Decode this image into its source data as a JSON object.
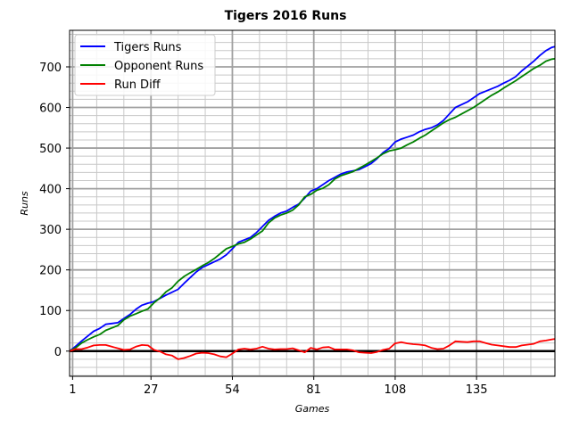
{
  "chart_data": {
    "type": "line",
    "title": "Tigers 2016 Runs",
    "xlabel": "Games",
    "ylabel": "Runs",
    "xlim": [
      0,
      161
    ],
    "ylim": [
      -62,
      790
    ],
    "xticks": [
      1,
      27,
      54,
      81,
      108,
      135
    ],
    "yticks": [
      0,
      100,
      200,
      300,
      400,
      500,
      600,
      700
    ],
    "grid": "major and minor",
    "legend_position": "top-left",
    "zero_line": 0,
    "series": [
      {
        "name": "Tigers Runs",
        "color": "#0000ff",
        "points": [
          [
            0,
            0
          ],
          [
            2,
            12
          ],
          [
            4,
            25
          ],
          [
            6,
            37
          ],
          [
            8,
            49
          ],
          [
            10,
            56
          ],
          [
            12,
            66
          ],
          [
            14,
            68
          ],
          [
            16,
            70
          ],
          [
            18,
            80
          ],
          [
            20,
            90
          ],
          [
            22,
            103
          ],
          [
            24,
            113
          ],
          [
            26,
            118
          ],
          [
            28,
            122
          ],
          [
            30,
            130
          ],
          [
            32,
            138
          ],
          [
            34,
            145
          ],
          [
            36,
            152
          ],
          [
            38,
            167
          ],
          [
            40,
            181
          ],
          [
            42,
            195
          ],
          [
            44,
            206
          ],
          [
            46,
            213
          ],
          [
            48,
            220
          ],
          [
            50,
            227
          ],
          [
            52,
            237
          ],
          [
            54,
            252
          ],
          [
            56,
            268
          ],
          [
            58,
            274
          ],
          [
            60,
            280
          ],
          [
            62,
            292
          ],
          [
            64,
            307
          ],
          [
            66,
            322
          ],
          [
            68,
            332
          ],
          [
            70,
            340
          ],
          [
            72,
            345
          ],
          [
            74,
            354
          ],
          [
            76,
            362
          ],
          [
            78,
            377
          ],
          [
            80,
            394
          ],
          [
            82,
            400
          ],
          [
            84,
            410
          ],
          [
            86,
            420
          ],
          [
            88,
            428
          ],
          [
            90,
            436
          ],
          [
            92,
            441
          ],
          [
            94,
            444
          ],
          [
            96,
            447
          ],
          [
            98,
            454
          ],
          [
            100,
            462
          ],
          [
            102,
            474
          ],
          [
            104,
            489
          ],
          [
            106,
            499
          ],
          [
            108,
            515
          ],
          [
            110,
            522
          ],
          [
            112,
            527
          ],
          [
            114,
            532
          ],
          [
            116,
            540
          ],
          [
            118,
            546
          ],
          [
            120,
            550
          ],
          [
            122,
            557
          ],
          [
            124,
            568
          ],
          [
            126,
            584
          ],
          [
            128,
            600
          ],
          [
            130,
            607
          ],
          [
            132,
            614
          ],
          [
            134,
            624
          ],
          [
            136,
            634
          ],
          [
            138,
            640
          ],
          [
            140,
            646
          ],
          [
            142,
            652
          ],
          [
            144,
            660
          ],
          [
            146,
            667
          ],
          [
            148,
            676
          ],
          [
            150,
            690
          ],
          [
            152,
            702
          ],
          [
            154,
            714
          ],
          [
            156,
            728
          ],
          [
            158,
            740
          ],
          [
            160,
            748
          ],
          [
            161,
            750
          ]
        ]
      },
      {
        "name": "Opponent Runs",
        "color": "#008000",
        "points": [
          [
            0,
            0
          ],
          [
            2,
            8
          ],
          [
            4,
            20
          ],
          [
            6,
            28
          ],
          [
            8,
            35
          ],
          [
            10,
            41
          ],
          [
            12,
            51
          ],
          [
            14,
            57
          ],
          [
            16,
            63
          ],
          [
            18,
            77
          ],
          [
            20,
            86
          ],
          [
            22,
            92
          ],
          [
            24,
            98
          ],
          [
            26,
            104
          ],
          [
            28,
            119
          ],
          [
            30,
            131
          ],
          [
            32,
            146
          ],
          [
            34,
            156
          ],
          [
            36,
            172
          ],
          [
            38,
            184
          ],
          [
            40,
            193
          ],
          [
            42,
            201
          ],
          [
            44,
            210
          ],
          [
            46,
            218
          ],
          [
            48,
            228
          ],
          [
            50,
            240
          ],
          [
            52,
            252
          ],
          [
            54,
            258
          ],
          [
            56,
            264
          ],
          [
            58,
            268
          ],
          [
            60,
            276
          ],
          [
            62,
            286
          ],
          [
            64,
            296
          ],
          [
            66,
            316
          ],
          [
            68,
            328
          ],
          [
            70,
            335
          ],
          [
            72,
            340
          ],
          [
            74,
            347
          ],
          [
            76,
            360
          ],
          [
            78,
            380
          ],
          [
            80,
            386
          ],
          [
            82,
            396
          ],
          [
            84,
            401
          ],
          [
            86,
            410
          ],
          [
            88,
            424
          ],
          [
            90,
            432
          ],
          [
            92,
            437
          ],
          [
            94,
            442
          ],
          [
            96,
            450
          ],
          [
            98,
            458
          ],
          [
            100,
            467
          ],
          [
            102,
            476
          ],
          [
            104,
            486
          ],
          [
            106,
            493
          ],
          [
            108,
            496
          ],
          [
            110,
            500
          ],
          [
            112,
            508
          ],
          [
            114,
            515
          ],
          [
            116,
            524
          ],
          [
            118,
            532
          ],
          [
            120,
            542
          ],
          [
            122,
            552
          ],
          [
            124,
            562
          ],
          [
            126,
            570
          ],
          [
            128,
            576
          ],
          [
            130,
            584
          ],
          [
            132,
            592
          ],
          [
            134,
            600
          ],
          [
            136,
            610
          ],
          [
            138,
            620
          ],
          [
            140,
            630
          ],
          [
            142,
            638
          ],
          [
            144,
            648
          ],
          [
            146,
            657
          ],
          [
            148,
            666
          ],
          [
            150,
            676
          ],
          [
            152,
            686
          ],
          [
            154,
            696
          ],
          [
            156,
            704
          ],
          [
            158,
            714
          ],
          [
            160,
            719
          ],
          [
            161,
            720
          ]
        ]
      },
      {
        "name": "Run Diff",
        "color": "#ff0000",
        "points": [
          [
            0,
            0
          ],
          [
            2,
            5
          ],
          [
            4,
            5
          ],
          [
            6,
            9
          ],
          [
            8,
            14
          ],
          [
            10,
            15
          ],
          [
            12,
            15
          ],
          [
            14,
            11
          ],
          [
            16,
            7
          ],
          [
            18,
            3
          ],
          [
            20,
            4
          ],
          [
            22,
            11
          ],
          [
            24,
            15
          ],
          [
            26,
            14
          ],
          [
            28,
            3
          ],
          [
            30,
            -1
          ],
          [
            32,
            -8
          ],
          [
            34,
            -11
          ],
          [
            36,
            -20
          ],
          [
            38,
            -17
          ],
          [
            40,
            -12
          ],
          [
            42,
            -6
          ],
          [
            44,
            -4
          ],
          [
            46,
            -5
          ],
          [
            48,
            -8
          ],
          [
            50,
            -13
          ],
          [
            52,
            -15
          ],
          [
            54,
            -6
          ],
          [
            56,
            4
          ],
          [
            58,
            6
          ],
          [
            60,
            4
          ],
          [
            62,
            6
          ],
          [
            64,
            11
          ],
          [
            66,
            6
          ],
          [
            68,
            4
          ],
          [
            70,
            5
          ],
          [
            72,
            5
          ],
          [
            74,
            7
          ],
          [
            76,
            2
          ],
          [
            78,
            -3
          ],
          [
            80,
            8
          ],
          [
            82,
            4
          ],
          [
            84,
            9
          ],
          [
            86,
            10
          ],
          [
            88,
            4
          ],
          [
            90,
            4
          ],
          [
            92,
            4
          ],
          [
            94,
            2
          ],
          [
            96,
            -3
          ],
          [
            98,
            -4
          ],
          [
            100,
            -5
          ],
          [
            102,
            -2
          ],
          [
            104,
            3
          ],
          [
            106,
            6
          ],
          [
            108,
            19
          ],
          [
            110,
            22
          ],
          [
            112,
            19
          ],
          [
            114,
            17
          ],
          [
            116,
            16
          ],
          [
            118,
            14
          ],
          [
            120,
            8
          ],
          [
            122,
            5
          ],
          [
            124,
            6
          ],
          [
            126,
            14
          ],
          [
            128,
            24
          ],
          [
            130,
            23
          ],
          [
            132,
            22
          ],
          [
            134,
            24
          ],
          [
            136,
            24
          ],
          [
            138,
            20
          ],
          [
            140,
            16
          ],
          [
            142,
            14
          ],
          [
            144,
            12
          ],
          [
            146,
            10
          ],
          [
            148,
            10
          ],
          [
            150,
            14
          ],
          [
            152,
            16
          ],
          [
            154,
            18
          ],
          [
            156,
            24
          ],
          [
            158,
            26
          ],
          [
            160,
            29
          ],
          [
            161,
            30
          ]
        ]
      }
    ]
  }
}
